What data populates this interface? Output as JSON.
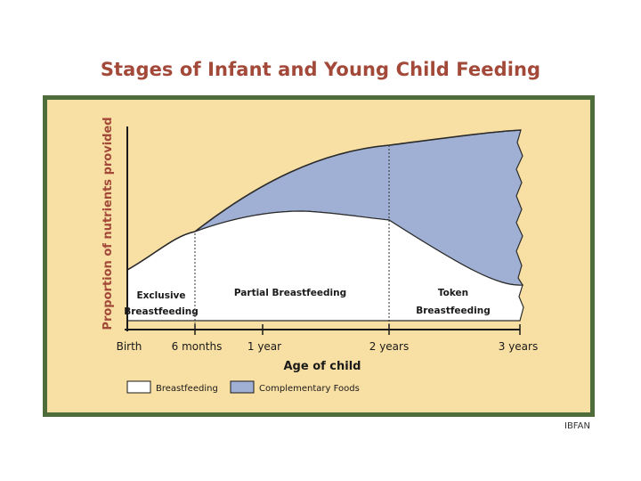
{
  "title": "Stages of Infant and Young Child Feeding",
  "y_axis_label": "Proportion of nutrients provided",
  "x_axis_label": "Age of child",
  "x_ticks": [
    "Birth",
    "6 months",
    "1 year",
    "2 years",
    "3 years"
  ],
  "stages": {
    "exclusive_line1": "Exclusive",
    "exclusive_line2": "Breastfeeding",
    "partial": "Partial Breastfeeding",
    "token_line1": "Token",
    "token_line2": "Breastfeeding"
  },
  "legend": {
    "breastfeeding": "Breastfeeding",
    "complementary": "Complementary Foods"
  },
  "credit": "IBFAN",
  "colors": {
    "title": "#a3493a",
    "frame_border": "#4f6d3a",
    "frame_background": "#f8dfa3",
    "breastfeeding_fill": "#ffffff",
    "complementary_fill": "#9fb0d4"
  }
}
